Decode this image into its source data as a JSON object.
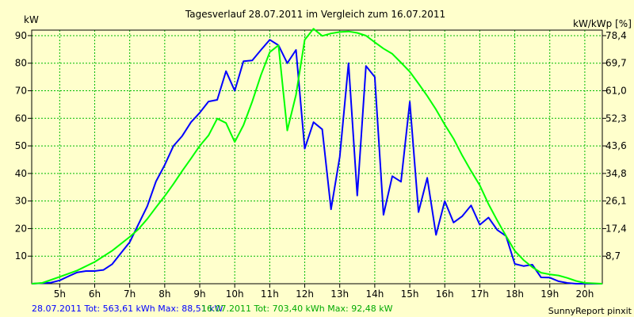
{
  "chart_data": {
    "type": "line",
    "title": "Tagesverlauf 28.07.2011 im Vergleich zum 16.07.2011",
    "ylabel_left": "kW",
    "ylabel_right": "kW/kWp [%]",
    "x_ticks": [
      "5h",
      "6h",
      "7h",
      "8h",
      "9h",
      "10h",
      "11h",
      "12h",
      "13h",
      "14h",
      "15h",
      "16h",
      "17h",
      "18h",
      "19h",
      "20h"
    ],
    "xlim": [
      4.2,
      20.5
    ],
    "ylim": [
      0,
      92
    ],
    "y_ticks_left": [
      "10",
      "20",
      "30",
      "40",
      "50",
      "60",
      "70",
      "80",
      "90"
    ],
    "y_ticks_right": [
      "8,7",
      "17,4",
      "26,1",
      "34,8",
      "43,6",
      "52,3",
      "61,0",
      "69,7",
      "78,4"
    ],
    "grid": true,
    "colors": {
      "series1": "#0000ff",
      "series2": "#00ff00",
      "grid": "#00bb00",
      "background": "#ffffcc"
    },
    "series": [
      {
        "name": "28.07.2011",
        "color": "#0000ff",
        "x": [
          4.2,
          4.75,
          5.0,
          5.25,
          5.5,
          5.75,
          6.0,
          6.25,
          6.5,
          6.75,
          7.0,
          7.25,
          7.5,
          7.75,
          8.0,
          8.25,
          8.5,
          8.75,
          9.0,
          9.25,
          9.5,
          9.75,
          10.0,
          10.25,
          10.5,
          10.75,
          11.0,
          11.25,
          11.5,
          11.75,
          12.0,
          12.25,
          12.5,
          12.75,
          13.0,
          13.25,
          13.5,
          13.75,
          14.0,
          14.25,
          14.5,
          14.75,
          15.0,
          15.25,
          15.5,
          15.75,
          16.0,
          16.25,
          16.5,
          16.75,
          17.0,
          17.25,
          17.5,
          17.75,
          18.0,
          18.25,
          18.5,
          18.75,
          19.0,
          19.25,
          19.5,
          19.75,
          20.0,
          20.5
        ],
        "y": [
          0,
          0.4,
          1.2,
          2.7,
          4.1,
          4.6,
          4.6,
          5.0,
          7.1,
          11.1,
          15.1,
          21.6,
          28.1,
          37.1,
          43.1,
          50.0,
          53.6,
          58.6,
          62.0,
          66.1,
          66.7,
          77.1,
          70.0,
          80.7,
          81.0,
          84.8,
          88.5,
          86.5,
          80.0,
          84.8,
          49.0,
          58.6,
          56.0,
          27.0,
          46.0,
          80.0,
          32.0,
          79.0,
          75.0,
          25.0,
          39.0,
          37.0,
          66.0,
          26.0,
          38.4,
          17.7,
          30.0,
          22.2,
          24.5,
          28.4,
          21.4,
          24.0,
          19.5,
          17.3,
          7.2,
          6.4,
          6.9,
          2.3,
          2.2,
          0.9,
          0.3,
          0,
          0,
          0
        ]
      },
      {
        "name": "16.07.2011",
        "color": "#00ff00",
        "x": [
          4.2,
          4.5,
          5.0,
          5.5,
          6.0,
          6.5,
          7.0,
          7.25,
          7.5,
          7.75,
          8.0,
          8.25,
          8.5,
          8.75,
          9.0,
          9.25,
          9.5,
          9.75,
          10.0,
          10.25,
          10.5,
          10.75,
          11.0,
          11.25,
          11.5,
          11.75,
          12.0,
          12.25,
          12.5,
          12.75,
          13.0,
          13.25,
          13.5,
          13.75,
          14.0,
          14.25,
          14.5,
          14.75,
          15.0,
          15.25,
          15.5,
          15.75,
          16.0,
          16.25,
          16.5,
          16.75,
          17.0,
          17.25,
          17.5,
          17.75,
          18.0,
          18.25,
          18.5,
          18.75,
          19.0,
          19.25,
          19.5,
          19.75,
          20.0,
          20.5
        ],
        "y": [
          0,
          0.3,
          2.5,
          4.8,
          7.9,
          12.0,
          17.0,
          19.8,
          23.5,
          27.7,
          31.8,
          36.2,
          40.9,
          45.4,
          50.0,
          53.8,
          59.9,
          58.3,
          51.4,
          57.5,
          66.1,
          75.7,
          84.0,
          86.5,
          55.6,
          68.5,
          88.5,
          92.5,
          89.9,
          90.8,
          91.3,
          91.5,
          91.0,
          90.0,
          87.6,
          85.3,
          83.4,
          80.2,
          76.9,
          72.6,
          68.1,
          63.2,
          57.7,
          52.6,
          46.5,
          40.9,
          35.7,
          28.9,
          22.9,
          17.3,
          11.9,
          8.6,
          6.0,
          4.0,
          3.4,
          3.0,
          2.1,
          1.0,
          0.3,
          0
        ]
      }
    ],
    "legend": [
      {
        "label": "28.07.2011 Tot: 563,61 kWh Max: 88,51 kW",
        "color": "#0000ff"
      },
      {
        "label": "16.07.2011 Tot: 703,40 kWh Max: 92,48 kW",
        "color": "#00aa00"
      }
    ],
    "footer": "SunnyReport pinxit"
  }
}
